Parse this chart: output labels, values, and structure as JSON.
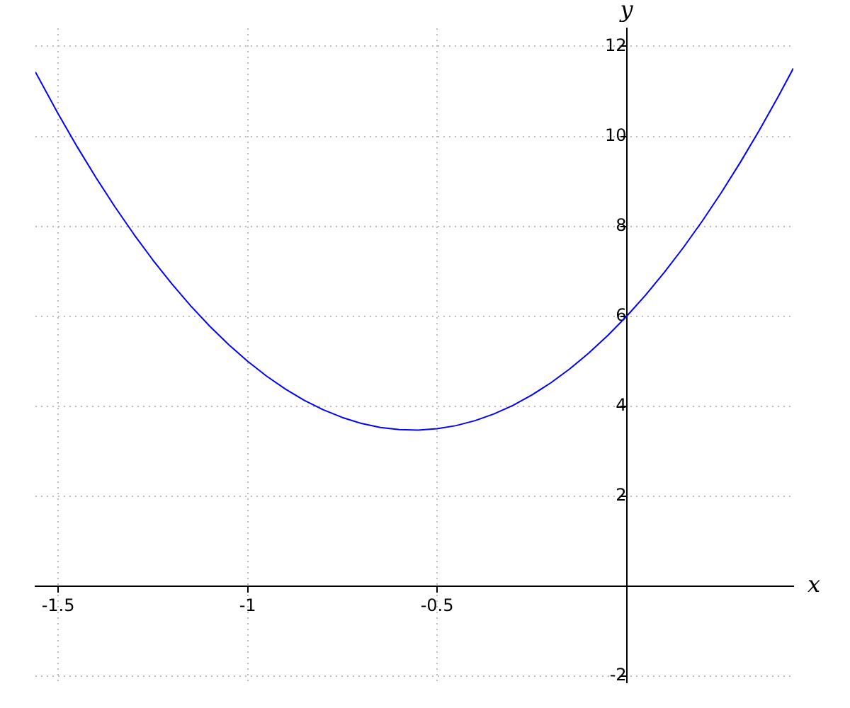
{
  "chart_data": {
    "type": "line",
    "xlabel": "x",
    "ylabel": "y",
    "x": [
      -1.56,
      -1.5,
      -1.45,
      -1.4,
      -1.35,
      -1.3,
      -1.25,
      -1.2,
      -1.15,
      -1.1,
      -1.05,
      -1,
      -0.95,
      -0.9,
      -0.85,
      -0.8,
      -0.75,
      -0.7,
      -0.65,
      -0.6,
      -0.55,
      -0.5,
      -0.45,
      -0.4,
      -0.35,
      -0.3,
      -0.25,
      -0.2,
      -0.15,
      -0.1,
      -0.05,
      0,
      0.05,
      0.1,
      0.15,
      0.2,
      0.25,
      0.3,
      0.35,
      0.4,
      0.44
    ],
    "values": [
      11.43,
      10.5,
      9.77,
      9.08,
      8.43,
      7.82,
      7.25,
      6.72,
      6.23,
      5.78,
      5.37,
      5,
      4.67,
      4.38,
      4.13,
      3.92,
      3.75,
      3.62,
      3.53,
      3.48,
      3.47,
      3.5,
      3.57,
      3.68,
      3.83,
      4.02,
      4.25,
      4.52,
      4.83,
      5.18,
      5.57,
      6,
      6.47,
      6.98,
      7.53,
      8.12,
      8.75,
      9.42,
      10.13,
      10.88,
      11.51
    ],
    "color": "#0000ff",
    "xlim": [
      -1.56,
      0.44
    ],
    "ylim": [
      -2.14,
      12.4
    ],
    "xticks": [
      -1.5,
      -1,
      -0.5,
      {
        "value": 0,
        "label": null
      }
    ],
    "yticks": [
      -2,
      {
        "value": 0,
        "label": null
      },
      2,
      4,
      6,
      8,
      10,
      12
    ],
    "grid": true,
    "marker": "none",
    "line_style": "solid"
  }
}
